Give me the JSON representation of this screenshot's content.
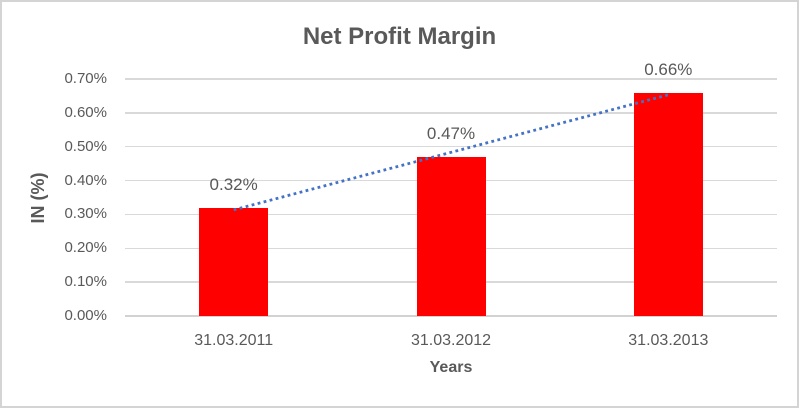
{
  "chart": {
    "colors": {
      "bar": "#FF0000",
      "trendline": "#4472C4",
      "gridline": "#D9D9D9",
      "axis_line": "#D2D2D2",
      "text": "#595959",
      "border": "#D4D4D4",
      "background": "#FFFFFF"
    }
  },
  "chart_data": {
    "type": "bar",
    "title": "Net Profit Margin",
    "xlabel": "Years",
    "ylabel": "IN (%)",
    "categories": [
      "31.03.2011",
      "31.03.2012",
      "31.03.2013"
    ],
    "values": [
      0.32,
      0.47,
      0.66
    ],
    "data_labels": [
      "0.32%",
      "0.47%",
      "0.66%"
    ],
    "y_tick_labels": [
      "0.70%",
      "0.60%",
      "0.50%",
      "0.40%",
      "0.30%",
      "0.20%",
      "0.10%",
      "0.00%"
    ],
    "ylim": [
      0,
      0.7
    ],
    "y_tick_step": 0.1,
    "unit": "percent",
    "grid": true,
    "legend": "none",
    "bar_color": "#FF0000",
    "trendline": {
      "type": "linear",
      "style": "dotted",
      "color": "#4472C4"
    }
  }
}
